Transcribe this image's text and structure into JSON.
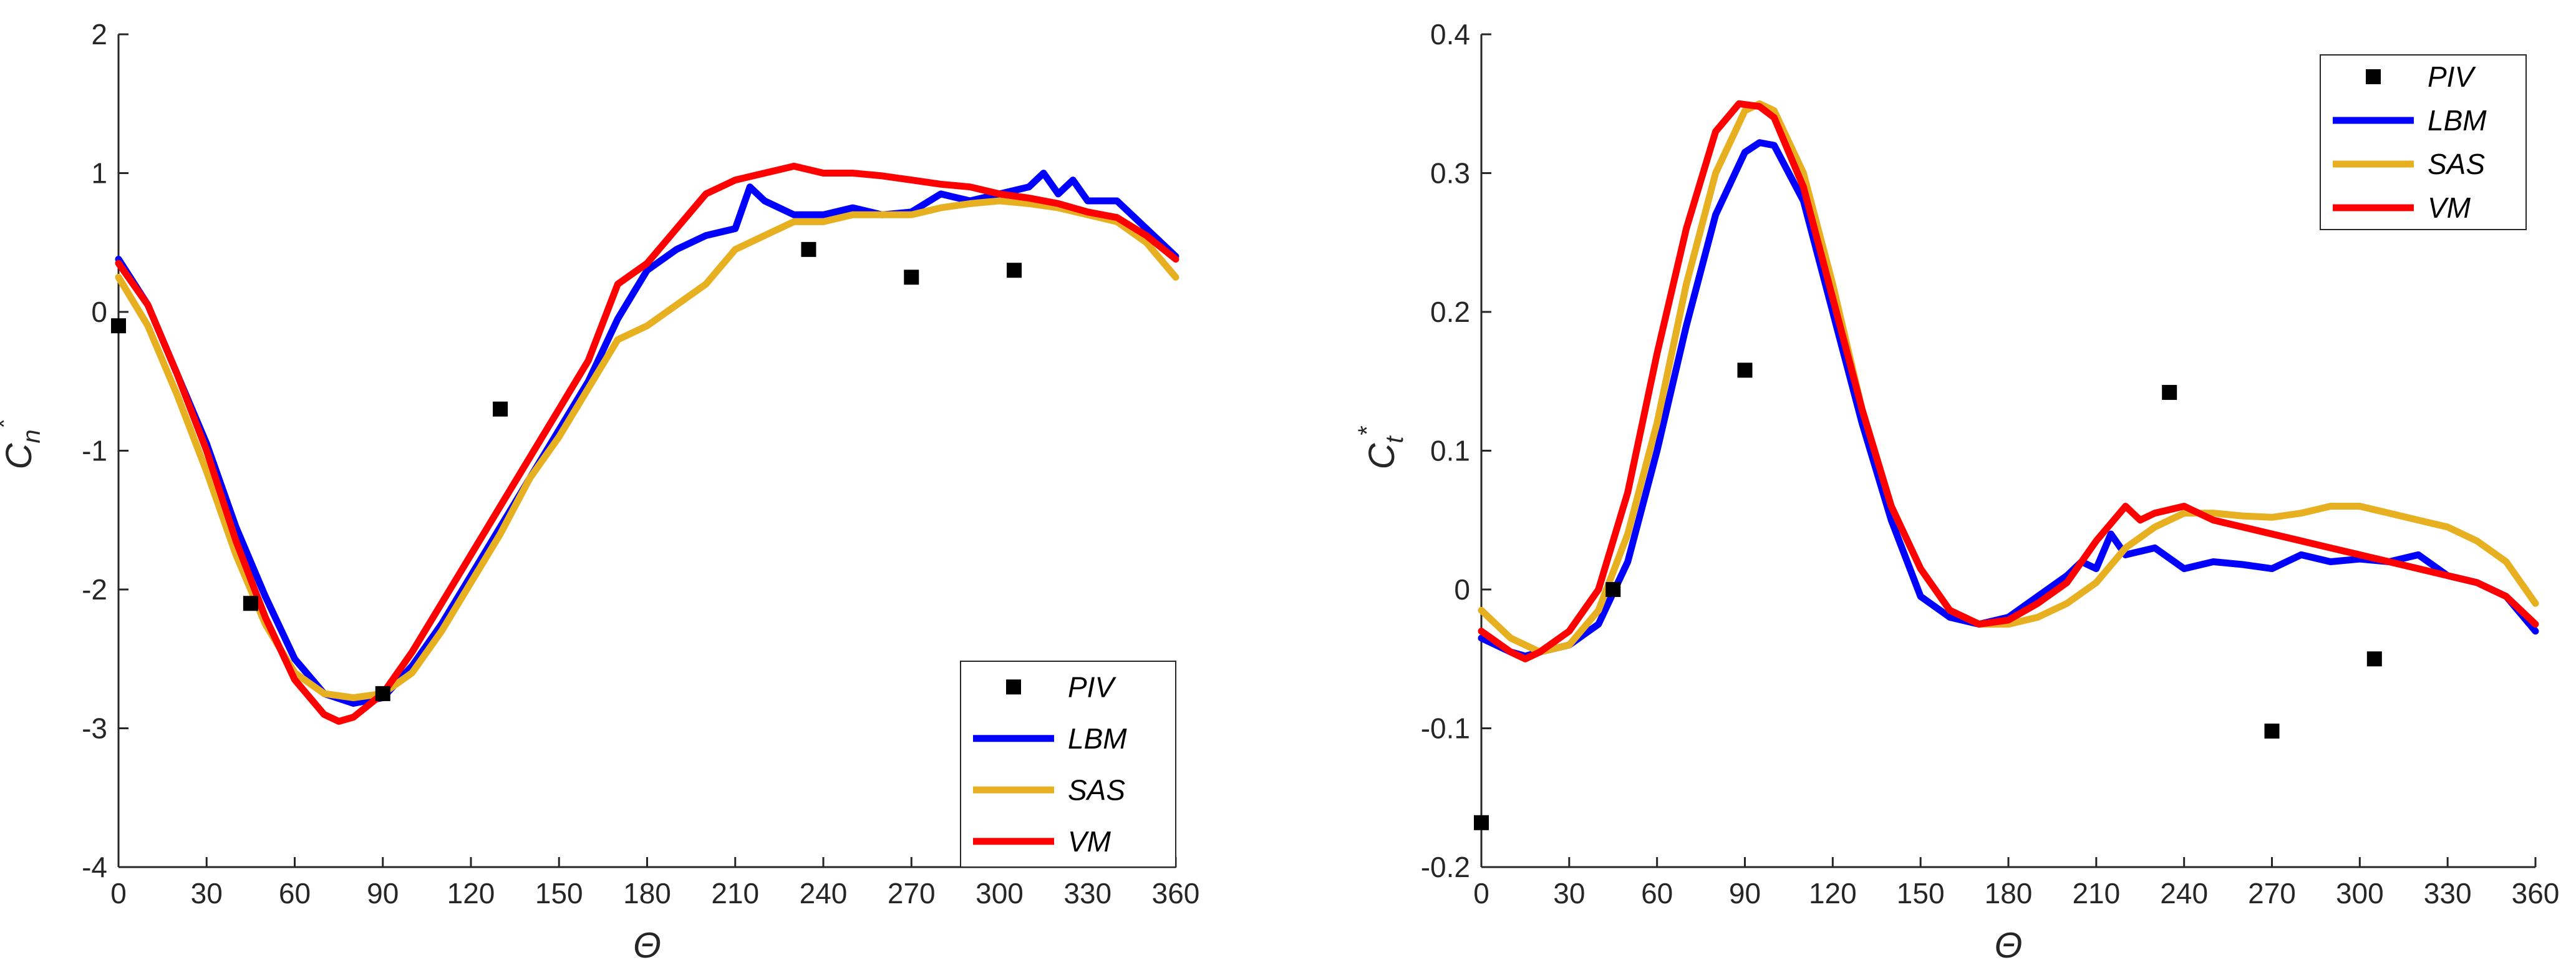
{
  "chart_data": [
    {
      "type": "line",
      "xlabel": "Θ",
      "ylabel_main": "C",
      "ylabel_sub": "n",
      "ylabel_sup": "*",
      "xlim": [
        0,
        360
      ],
      "ylim": [
        -4,
        2
      ],
      "xticks": [
        "0",
        "30",
        "60",
        "90",
        "120",
        "150",
        "180",
        "210",
        "240",
        "270",
        "300",
        "330",
        "360"
      ],
      "yticks": [
        "-4",
        "-3",
        "-2",
        "-1",
        "0",
        "1",
        "2"
      ],
      "legend_location": "bottom-right",
      "legend": [
        "PIV",
        "LBM",
        "SAS",
        "VM"
      ],
      "colors": {
        "PIV": "#000000",
        "LBM": "#0000ff",
        "SAS": "#e6b020",
        "VM": "#ff0000"
      },
      "scatter": {
        "name": "PIV",
        "x": [
          0,
          45,
          90,
          130,
          235,
          270,
          305
        ],
        "y": [
          -0.1,
          -2.1,
          -2.75,
          -0.7,
          0.45,
          0.25,
          0.3
        ]
      },
      "series": [
        {
          "name": "LBM",
          "x": [
            0,
            10,
            20,
            30,
            40,
            50,
            60,
            70,
            80,
            90,
            100,
            110,
            120,
            130,
            140,
            150,
            160,
            170,
            180,
            190,
            200,
            210,
            215,
            220,
            230,
            240,
            250,
            260,
            270,
            280,
            290,
            300,
            310,
            315,
            320,
            325,
            330,
            340,
            350,
            360
          ],
          "y": [
            0.38,
            0.05,
            -0.45,
            -0.95,
            -1.55,
            -2.05,
            -2.5,
            -2.75,
            -2.82,
            -2.78,
            -2.55,
            -2.25,
            -1.9,
            -1.55,
            -1.2,
            -0.85,
            -0.5,
            -0.05,
            0.3,
            0.45,
            0.55,
            0.6,
            0.9,
            0.8,
            0.7,
            0.7,
            0.75,
            0.7,
            0.72,
            0.85,
            0.8,
            0.85,
            0.9,
            1.0,
            0.85,
            0.95,
            0.8,
            0.8,
            0.6,
            0.4
          ]
        },
        {
          "name": "SAS",
          "x": [
            0,
            10,
            20,
            30,
            40,
            50,
            60,
            70,
            80,
            90,
            100,
            110,
            120,
            130,
            140,
            150,
            160,
            170,
            180,
            190,
            200,
            210,
            220,
            230,
            240,
            250,
            260,
            270,
            280,
            290,
            300,
            310,
            320,
            330,
            340,
            350,
            360
          ],
          "y": [
            0.25,
            -0.1,
            -0.6,
            -1.15,
            -1.75,
            -2.25,
            -2.6,
            -2.75,
            -2.78,
            -2.75,
            -2.6,
            -2.3,
            -1.95,
            -1.6,
            -1.2,
            -0.9,
            -0.55,
            -0.2,
            -0.1,
            0.05,
            0.2,
            0.45,
            0.55,
            0.65,
            0.65,
            0.7,
            0.7,
            0.7,
            0.75,
            0.78,
            0.8,
            0.78,
            0.75,
            0.7,
            0.65,
            0.5,
            0.25
          ]
        },
        {
          "name": "VM",
          "x": [
            0,
            10,
            20,
            30,
            40,
            50,
            60,
            70,
            75,
            80,
            90,
            100,
            110,
            120,
            130,
            140,
            150,
            160,
            170,
            180,
            190,
            200,
            210,
            220,
            230,
            240,
            250,
            260,
            270,
            280,
            290,
            300,
            310,
            320,
            330,
            340,
            350,
            360
          ],
          "y": [
            0.35,
            0.05,
            -0.45,
            -1.0,
            -1.65,
            -2.2,
            -2.65,
            -2.9,
            -2.95,
            -2.92,
            -2.75,
            -2.45,
            -2.1,
            -1.75,
            -1.4,
            -1.05,
            -0.7,
            -0.35,
            0.2,
            0.35,
            0.6,
            0.85,
            0.95,
            1.0,
            1.05,
            1.0,
            1.0,
            0.98,
            0.95,
            0.92,
            0.9,
            0.85,
            0.82,
            0.78,
            0.72,
            0.68,
            0.55,
            0.38
          ]
        }
      ]
    },
    {
      "type": "line",
      "xlabel": "Θ",
      "ylabel_main": "C",
      "ylabel_sub": "t",
      "ylabel_sup": "*",
      "xlim": [
        0,
        360
      ],
      "ylim": [
        -0.2,
        0.4
      ],
      "xticks": [
        "0",
        "30",
        "60",
        "90",
        "120",
        "150",
        "180",
        "210",
        "240",
        "270",
        "300",
        "330",
        "360"
      ],
      "yticks": [
        "-0.2",
        "-0.1",
        "0",
        "0.1",
        "0.2",
        "0.3",
        "0.4"
      ],
      "legend_location": "top-right",
      "legend": [
        "PIV",
        "LBM",
        "SAS",
        "VM"
      ],
      "colors": {
        "PIV": "#000000",
        "LBM": "#0000ff",
        "SAS": "#e6b020",
        "VM": "#ff0000"
      },
      "scatter": {
        "name": "PIV",
        "x": [
          0,
          45,
          90,
          235,
          270,
          305
        ],
        "y": [
          -0.168,
          0.0,
          0.158,
          0.142,
          -0.102,
          -0.05
        ]
      },
      "series": [
        {
          "name": "LBM",
          "x": [
            0,
            10,
            15,
            20,
            30,
            40,
            50,
            60,
            70,
            80,
            90,
            95,
            100,
            110,
            120,
            130,
            140,
            150,
            160,
            170,
            180,
            190,
            200,
            205,
            210,
            215,
            220,
            230,
            240,
            250,
            260,
            270,
            280,
            290,
            300,
            310,
            320,
            330,
            340,
            350,
            360
          ],
          "y": [
            -0.035,
            -0.045,
            -0.048,
            -0.045,
            -0.04,
            -0.025,
            0.02,
            0.1,
            0.19,
            0.27,
            0.315,
            0.322,
            0.32,
            0.28,
            0.2,
            0.12,
            0.05,
            -0.005,
            -0.02,
            -0.025,
            -0.02,
            -0.005,
            0.01,
            0.02,
            0.015,
            0.04,
            0.025,
            0.03,
            0.015,
            0.02,
            0.018,
            0.015,
            0.025,
            0.02,
            0.022,
            0.02,
            0.025,
            0.01,
            0.005,
            -0.005,
            -0.03
          ]
        },
        {
          "name": "SAS",
          "x": [
            0,
            10,
            20,
            30,
            40,
            50,
            60,
            70,
            80,
            90,
            95,
            100,
            110,
            120,
            130,
            140,
            150,
            160,
            170,
            180,
            190,
            200,
            210,
            220,
            230,
            240,
            250,
            260,
            270,
            280,
            290,
            300,
            310,
            320,
            330,
            340,
            350,
            360
          ],
          "y": [
            -0.015,
            -0.035,
            -0.045,
            -0.04,
            -0.015,
            0.04,
            0.12,
            0.22,
            0.3,
            0.345,
            0.35,
            0.345,
            0.3,
            0.22,
            0.13,
            0.06,
            0.015,
            -0.015,
            -0.025,
            -0.025,
            -0.02,
            -0.01,
            0.005,
            0.03,
            0.045,
            0.055,
            0.055,
            0.053,
            0.052,
            0.055,
            0.06,
            0.06,
            0.055,
            0.05,
            0.045,
            0.035,
            0.02,
            -0.01
          ]
        },
        {
          "name": "VM",
          "x": [
            0,
            10,
            15,
            20,
            30,
            40,
            50,
            60,
            70,
            80,
            88,
            95,
            100,
            110,
            120,
            130,
            140,
            150,
            160,
            170,
            180,
            190,
            200,
            210,
            220,
            225,
            230,
            240,
            250,
            260,
            270,
            280,
            290,
            300,
            310,
            320,
            330,
            340,
            350,
            360
          ],
          "y": [
            -0.03,
            -0.045,
            -0.05,
            -0.045,
            -0.03,
            0.0,
            0.07,
            0.17,
            0.26,
            0.33,
            0.35,
            0.348,
            0.34,
            0.29,
            0.21,
            0.13,
            0.06,
            0.015,
            -0.015,
            -0.025,
            -0.022,
            -0.01,
            0.005,
            0.035,
            0.06,
            0.05,
            0.055,
            0.06,
            0.05,
            0.045,
            0.04,
            0.035,
            0.03,
            0.025,
            0.02,
            0.015,
            0.01,
            0.005,
            -0.005,
            -0.025
          ]
        }
      ]
    }
  ]
}
